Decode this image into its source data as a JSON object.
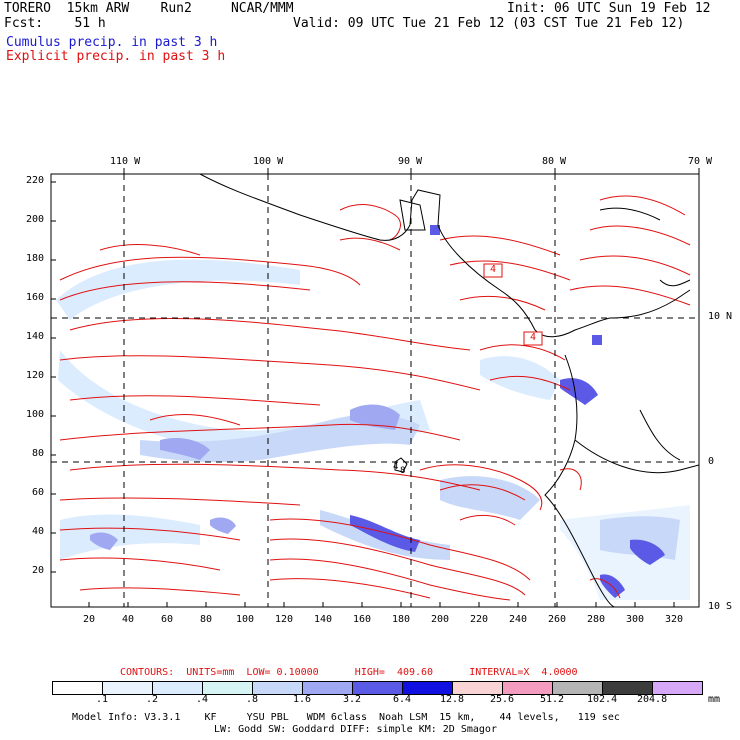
{
  "header": {
    "line1_left": "TORERO  15km ARW    Run2     NCAR/MMM",
    "line1_right": "Init: 06 UTC Sun 19 Feb 12",
    "line2_left": "Fcst:    51 h",
    "line2_right": "Valid: 09 UTC Tue 21 Feb 12 (03 CST Tue 21 Feb 12)",
    "field1": "Cumulus precip. in past 3 h",
    "field2": "Explicit precip. in past 3 h"
  },
  "map": {
    "lon_labels": [
      "110 W",
      "100 W",
      "90 W",
      "80 W",
      "70 W"
    ],
    "lat_labels": [
      "10 N",
      "0",
      "10 S"
    ],
    "y_ticks": [
      "220",
      "200",
      "180",
      "160",
      "140",
      "120",
      "100",
      "80",
      "60",
      "40",
      "20"
    ],
    "x_ticks": [
      "20",
      "40",
      "60",
      "80",
      "100",
      "120",
      "140",
      "160",
      "180",
      "200",
      "220",
      "240",
      "260",
      "280",
      "300",
      "320"
    ],
    "box_labels": [
      "4",
      "4"
    ],
    "small_labels": [
      "4",
      "8"
    ]
  },
  "contours_line": "CONTOURS:  UNITS=mm  LOW= 0.10000      HIGH=  409.60      INTERVAL=X  4.0000",
  "colorbar": {
    "labels": [
      ".1",
      ".2",
      ".4",
      ".8",
      "1.6",
      "3.2",
      "6.4",
      "12.8",
      "25.6",
      "51.2",
      "102.4",
      "204.8"
    ],
    "unit": "mm",
    "colors": [
      "#ffffff",
      "#eaf4ff",
      "#dcecff",
      "#d6f4f4",
      "#c8d8f8",
      "#9fa8f0",
      "#5a5ae6",
      "#1010e0",
      "#f8d4d4",
      "#f49cc0",
      "#b4b4b4",
      "#3c3c3c",
      "#d8a8f8"
    ]
  },
  "footer": {
    "line1": "Model Info: V3.3.1    KF     YSU PBL   WDM 6class  Noah LSM  15 km,    44 levels,   119 sec",
    "line2": "LW: Godd SW: Goddard DIFF: simple KM: 2D Smagor"
  }
}
